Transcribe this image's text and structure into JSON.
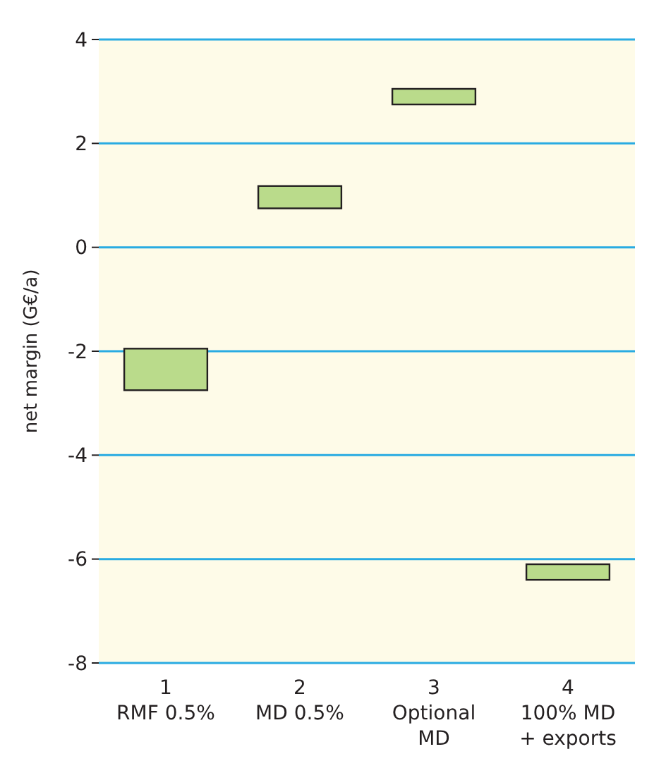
{
  "chart_data": {
    "type": "bar",
    "ylabel": "net margin (G€/a)",
    "categories": [
      "1\nRMF 0.5%",
      "2\nMD 0.5%",
      "3\nOptional\nMD",
      "4\n100% MD\n+ exports"
    ],
    "values": [
      0.8,
      0.43,
      0.3,
      0.3
    ],
    "base": [
      -2.75,
      0.75,
      2.75,
      -6.4
    ],
    "color": "#badb8b",
    "ylim": [
      -8,
      4
    ],
    "yticks": [
      -8,
      -6,
      -4,
      -2,
      0,
      2,
      4
    ],
    "grid": "y"
  }
}
